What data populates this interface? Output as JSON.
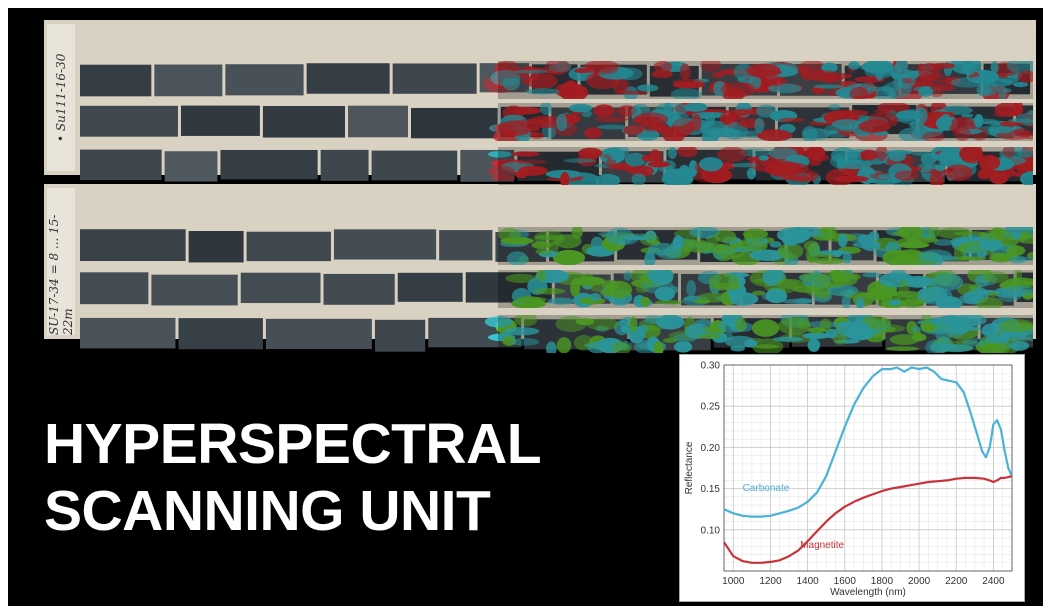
{
  "banner": {
    "title_line1": "HYPERSPECTRAL",
    "title_line2": "SCANNING UNIT"
  },
  "core_trays": [
    {
      "label": "• Su111-16-30",
      "rows": 3,
      "scan_overlay_colors": [
        "#2fb7c4",
        "#d8262c"
      ]
    },
    {
      "label": "SU-17-34 = 8 ... 15-22m",
      "rows": 3,
      "scan_overlay_colors": [
        "#39c6cf",
        "#64c82e"
      ]
    }
  ],
  "colors": {
    "background": "#000000",
    "title_text": "#ffffff",
    "carbonate": "#4ab3d8",
    "magnetite": "#c8333a"
  },
  "chart_data": {
    "type": "line",
    "xlabel": "Wavelength (nm)",
    "ylabel": "Reflectance",
    "xlim": [
      950,
      2500
    ],
    "ylim": [
      0.05,
      0.3
    ],
    "xticks": [
      1000,
      1200,
      1400,
      1600,
      1800,
      2000,
      2200,
      2400
    ],
    "yticks": [
      0.1,
      0.15,
      0.2,
      0.25,
      0.3
    ],
    "xtick_labels": [
      "1000",
      "1200",
      "1400",
      "1600",
      "1800",
      "2000",
      "2200",
      "2400"
    ],
    "ytick_labels": [
      "0.10",
      "0.15",
      "0.20",
      "0.25",
      "0.30"
    ],
    "grid": true,
    "legend": "inline labels",
    "series": [
      {
        "name": "Carbonate",
        "color": "#4ab3d8",
        "x": [
          950,
          1000,
          1050,
          1100,
          1150,
          1200,
          1250,
          1300,
          1350,
          1400,
          1450,
          1500,
          1550,
          1600,
          1650,
          1700,
          1750,
          1800,
          1850,
          1880,
          1920,
          1960,
          2000,
          2040,
          2080,
          2120,
          2160,
          2200,
          2240,
          2280,
          2320,
          2340,
          2360,
          2380,
          2400,
          2420,
          2440,
          2460,
          2480,
          2500
        ],
        "y": [
          0.125,
          0.12,
          0.117,
          0.116,
          0.116,
          0.117,
          0.12,
          0.123,
          0.127,
          0.134,
          0.145,
          0.165,
          0.195,
          0.225,
          0.252,
          0.272,
          0.286,
          0.295,
          0.295,
          0.297,
          0.292,
          0.297,
          0.295,
          0.297,
          0.292,
          0.283,
          0.281,
          0.279,
          0.267,
          0.24,
          0.21,
          0.195,
          0.188,
          0.2,
          0.228,
          0.233,
          0.222,
          0.196,
          0.175,
          0.165
        ]
      },
      {
        "name": "Magnetite",
        "color": "#c8333a",
        "x": [
          950,
          1000,
          1050,
          1100,
          1150,
          1200,
          1250,
          1300,
          1350,
          1400,
          1450,
          1500,
          1550,
          1600,
          1650,
          1700,
          1750,
          1800,
          1850,
          1900,
          1950,
          2000,
          2050,
          2100,
          2150,
          2200,
          2250,
          2300,
          2350,
          2380,
          2400,
          2420,
          2440,
          2460,
          2480,
          2500
        ],
        "y": [
          0.085,
          0.068,
          0.062,
          0.06,
          0.06,
          0.061,
          0.063,
          0.068,
          0.075,
          0.086,
          0.098,
          0.11,
          0.12,
          0.128,
          0.134,
          0.139,
          0.143,
          0.147,
          0.15,
          0.152,
          0.154,
          0.156,
          0.158,
          0.159,
          0.16,
          0.162,
          0.163,
          0.163,
          0.162,
          0.16,
          0.158,
          0.16,
          0.163,
          0.163,
          0.164,
          0.165
        ]
      }
    ]
  }
}
